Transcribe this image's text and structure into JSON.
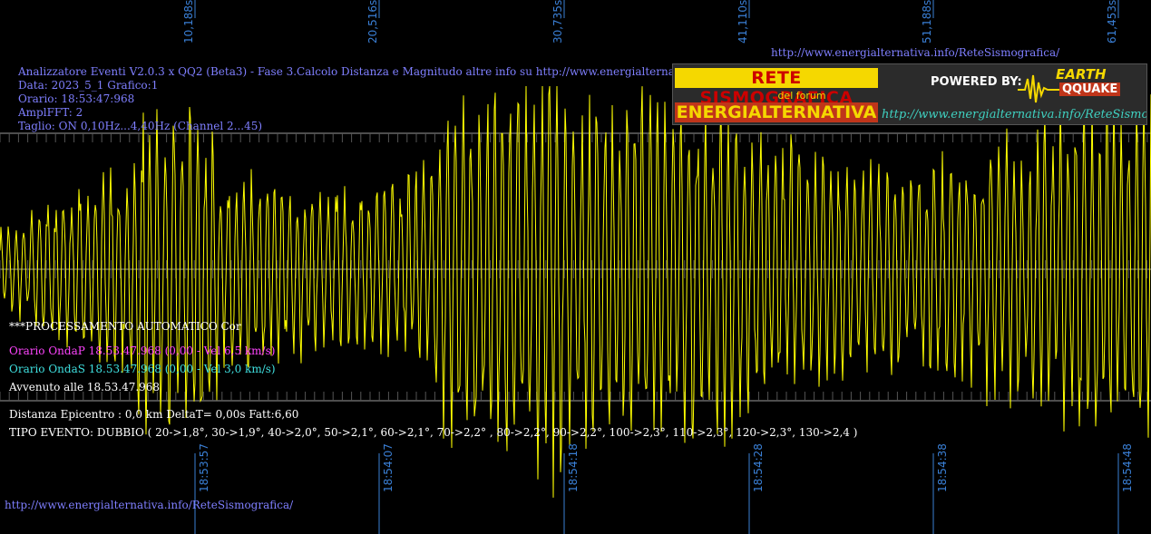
{
  "top_ticks": [
    "10,188s",
    "20,516s",
    "30,735s",
    "41,110s",
    "51,188s",
    "61,453s"
  ],
  "bottom_ticks": [
    "18:53:57",
    "18:54:07",
    "18:54:18",
    "18:54:28",
    "18:54:38",
    "18:54:48"
  ],
  "header": {
    "title": "Analizzatore Eventi V2.0.3 x QQ2 (Beta3) - Fase 3.Calcolo Distanza e Magnitudo altre info su http://www.energialternativa.info/ReteSismografica/",
    "data": "Data: 2023_5_1 Grafico:1",
    "orario": "Orario: 18:53:47:968",
    "amplfft": "AmplFFT: 2",
    "taglio": "Taglio: ON 0,10Hz...4,40Hz     (Channel 2...45)"
  },
  "top_url": "http://www.energialternativa.info/ReteSismografica/",
  "logo": {
    "line1": "RETE SISMOGRAFICA",
    "line2": "del forum",
    "line3": "ENERGIALTERNATIVA",
    "powered": "POWERED BY:",
    "brand_top": "EARTH",
    "brand_bottom": "QQUAKE",
    "url": "http://www.energialternativa.info/ReteSismografica"
  },
  "processing": {
    "label": "***PROCESSAMENTO AUTOMATICO Cor",
    "onda_p": "Orario OndaP 18.53.47.968  (0,00 - Vel 6,5 km/s)",
    "onda_s": "Orario OndaS 18.53.47.968  (0,00 - Vel 3,0 km/s)",
    "avvenuto": "Avvenuto alle 18.53.47.968",
    "distanza": "Distanza Epicentro : 0,0 km DeltaT= 0,00s  Fatt:6,60",
    "tipo_evento": "TIPO EVENTO: DUBBIO ( 20->1,8°, 30->1,9°, 40->2,0°, 50->2,1°, 60->2,1°, 70->2,2° , 80->2,2°, 90->2,2°, 100->2,3°, 110->2,3°, 120->2,3°, 130->2,4 )"
  },
  "footer_url": "http://www.energialternativa.info/ReteSismografica/",
  "colors": {
    "trace": "#ffff00",
    "gridline": "#9a9a9a",
    "tick_label": "#3a7fd5",
    "header_text": "#7f7fff",
    "onda_p": "#ff44ff",
    "onda_s": "#3fe0e0"
  }
}
